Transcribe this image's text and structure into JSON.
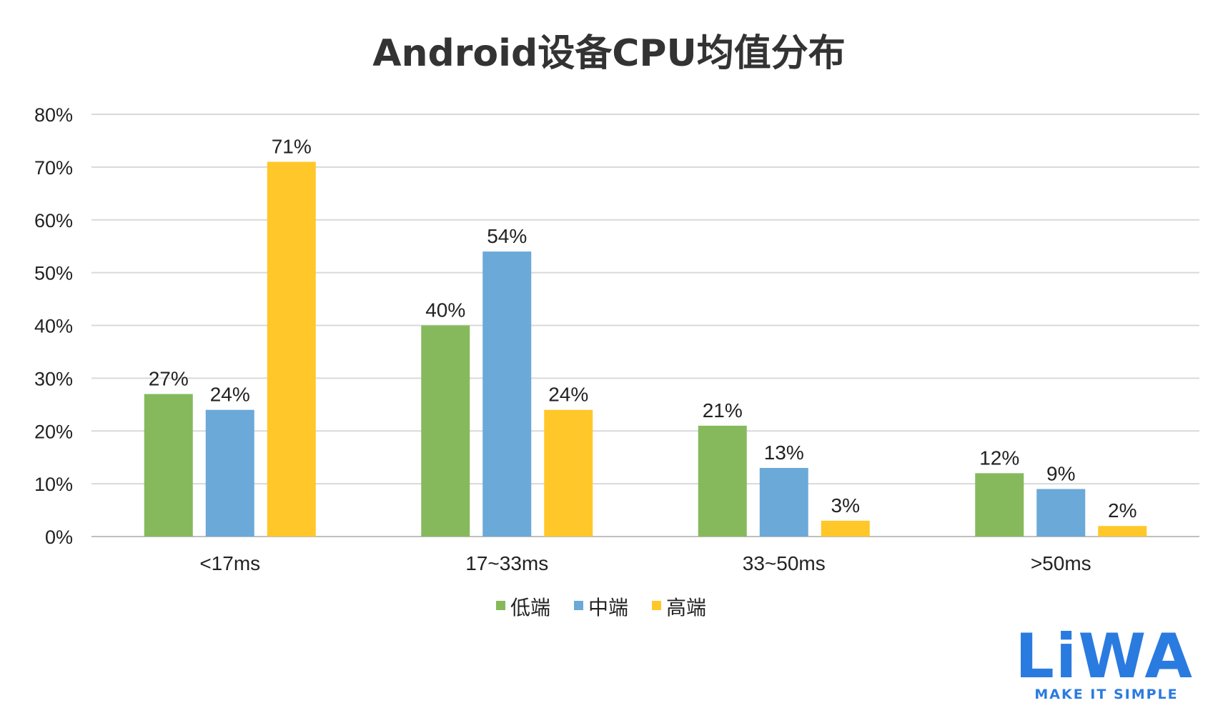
{
  "chart_data": {
    "type": "bar",
    "title": "Android设备CPU均值分布",
    "categories": [
      "<17ms",
      "17~33ms",
      "33~50ms",
      ">50ms"
    ],
    "series": [
      {
        "name": "低端",
        "color": "#86b95b",
        "values": [
          27,
          40,
          21,
          12
        ],
        "labels": [
          "27%",
          "40%",
          "21%",
          "12%"
        ]
      },
      {
        "name": "中端",
        "color": "#6aa9d8",
        "values": [
          24,
          54,
          13,
          9
        ],
        "labels": [
          "24%",
          "54%",
          "13%",
          "9%"
        ]
      },
      {
        "name": "高端",
        "color": "#ffc729",
        "values": [
          71,
          24,
          3,
          2
        ],
        "labels": [
          "71%",
          "24%",
          "3%",
          "2%"
        ]
      }
    ],
    "ylim": [
      0,
      80
    ],
    "yticks": [
      "0%",
      "10%",
      "20%",
      "30%",
      "40%",
      "50%",
      "60%",
      "70%",
      "80%"
    ],
    "grid": true,
    "legend": "bottom"
  },
  "logo": {
    "text": "LiWA",
    "tagline": "MAKE IT SIMPLE",
    "color": "#2a7be0"
  }
}
